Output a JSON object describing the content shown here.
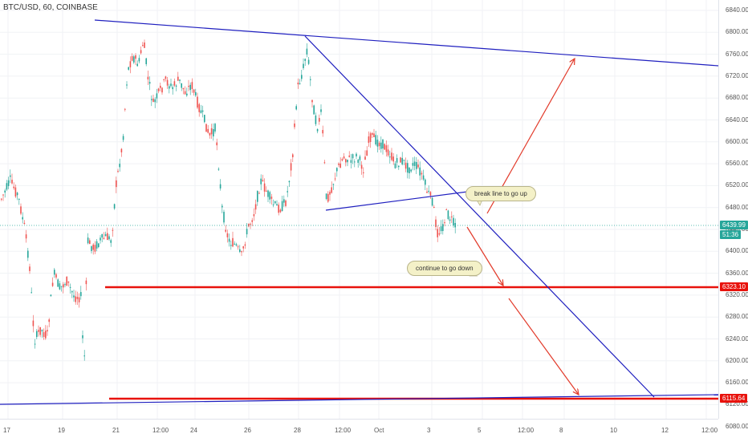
{
  "chart": {
    "symbol": "BTC/USD, 60, COINBASE",
    "price_ticks": [
      "6840.00",
      "6800.00",
      "6760.00",
      "6720.00",
      "6680.00",
      "6640.00",
      "6600.00",
      "6560.00",
      "6520.00",
      "6480.00",
      "6440.00",
      "6400.00",
      "6360.00",
      "6320.00",
      "6280.00",
      "6240.00",
      "6200.00",
      "6160.00",
      "6120.00",
      "6080.00"
    ],
    "time_ticks": [
      "17",
      "19",
      "21",
      "12:00",
      "24",
      "26",
      "28",
      "12:00",
      "Oct",
      "3",
      "5",
      "12:00",
      "8",
      "10",
      "12",
      "12:00"
    ],
    "badges": {
      "last_price": "6439.99",
      "countdown": "51:36",
      "level_1": "6323.10",
      "level_2": "6115.64"
    },
    "callouts": {
      "up": "break line to go up",
      "down": "continue to go down"
    },
    "colors": {
      "up": "#26a69a",
      "down": "#ef5350",
      "trendline": "#1f1fbf",
      "level": "#e8120c",
      "arrow": "#e23a2a",
      "last_price": "#26a69a"
    }
  }
}
